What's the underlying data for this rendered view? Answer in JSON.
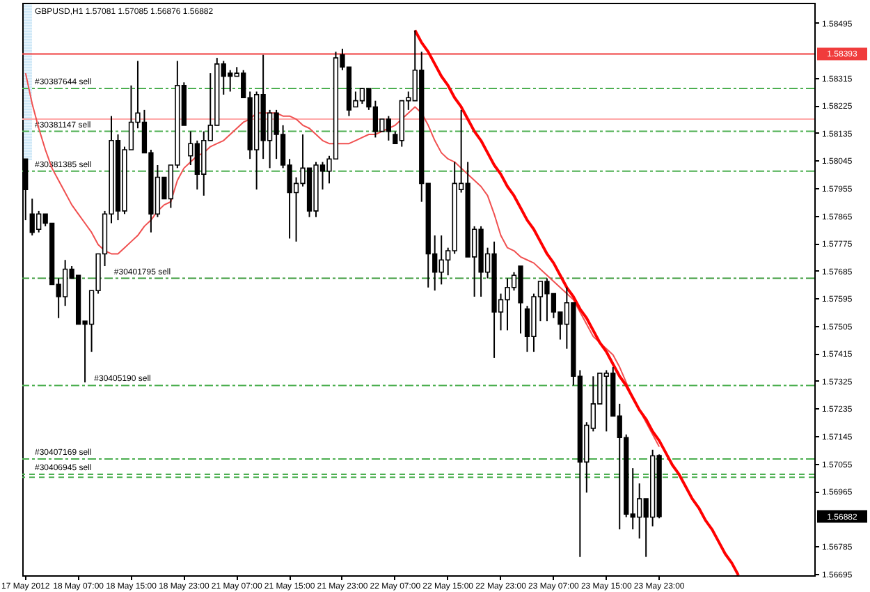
{
  "chart_data": {
    "type": "candlestick",
    "title": "GBPUSD,H1 1.57081 1.57085 1.56876 1.56882",
    "categories": [
      "17 May 2012",
      null,
      null,
      null,
      null,
      null,
      null,
      null,
      "18 May 07:00",
      null,
      null,
      null,
      null,
      null,
      null,
      null,
      "18 May 15:00",
      null,
      null,
      null,
      null,
      null,
      null,
      null,
      "18 May 23:00",
      null,
      null,
      null,
      null,
      null,
      null,
      null,
      "21 May 07:00",
      null,
      null,
      null,
      null,
      null,
      null,
      null,
      "21 May 15:00",
      null,
      null,
      null,
      null,
      null,
      null,
      null,
      "21 May 23:00",
      null,
      null,
      null,
      null,
      null,
      null,
      null,
      "22 May 07:00",
      null,
      null,
      null,
      null,
      null,
      null,
      null,
      "22 May 15:00",
      null,
      null,
      null,
      null,
      null,
      null,
      null,
      "22 May 23:00",
      null,
      null,
      null,
      null,
      null,
      null,
      null,
      "23 May 07:00",
      null,
      null,
      null,
      null,
      null,
      null,
      null,
      "23 May 15:00",
      null,
      null,
      null,
      null,
      null,
      null,
      null,
      "23 May 23:00",
      null,
      null,
      null,
      null,
      null,
      null,
      null,
      null,
      null,
      null,
      null,
      null,
      null,
      null,
      null,
      null,
      null,
      null,
      null,
      null,
      null,
      null,
      null
    ],
    "ohlc": [
      [
        1.5805,
        1.5805,
        1.5785,
        1.5795
      ],
      [
        1.5787,
        1.5792,
        1.578,
        1.5781
      ],
      [
        1.5782,
        1.5788,
        1.5781,
        1.5787
      ],
      [
        1.5787,
        1.5787,
        1.5783,
        1.5784
      ],
      [
        1.5784,
        1.5784,
        1.5764,
        1.5764
      ],
      [
        1.5764,
        1.5766,
        1.5753,
        1.576
      ],
      [
        1.576,
        1.5772,
        1.5757,
        1.5769
      ],
      [
        1.5769,
        1.577,
        1.5766,
        1.5766
      ],
      [
        1.5767,
        1.5767,
        1.5751,
        1.5751
      ],
      [
        1.5752,
        1.5752,
        1.5732,
        1.5751
      ],
      [
        1.5751,
        1.5762,
        1.5742,
        1.5762
      ],
      [
        1.5762,
        1.5774,
        1.5761,
        1.5774
      ],
      [
        1.5774,
        1.5788,
        1.577,
        1.5787
      ],
      [
        1.5787,
        1.5819,
        1.5784,
        1.5811
      ],
      [
        1.5811,
        1.5813,
        1.5785,
        1.5788
      ],
      [
        1.5788,
        1.5809,
        1.5787,
        1.5808
      ],
      [
        1.5808,
        1.5829,
        1.5808,
        1.5817
      ],
      [
        1.5817,
        1.5837,
        1.5815,
        1.582
      ],
      [
        1.5817,
        1.5821,
        1.5807,
        1.5807
      ],
      [
        1.5807,
        1.5808,
        1.5781,
        1.5787
      ],
      [
        1.5787,
        1.5803,
        1.5786,
        1.5799
      ],
      [
        1.5799,
        1.5799,
        1.5792,
        1.5792
      ],
      [
        1.5792,
        1.5803,
        1.5789,
        1.5803
      ],
      [
        1.5803,
        1.5837,
        1.5802,
        1.5829
      ],
      [
        1.5829,
        1.583,
        1.5816,
        1.5816
      ],
      [
        1.5806,
        1.5814,
        1.5803,
        1.581
      ],
      [
        1.581,
        1.5811,
        1.5795,
        1.58
      ],
      [
        1.58,
        1.5814,
        1.5793,
        1.5811
      ],
      [
        1.5811,
        1.5833,
        1.5811,
        1.5816
      ],
      [
        1.5816,
        1.5838,
        1.5816,
        1.5836
      ],
      [
        1.5836,
        1.5837,
        1.5826,
        1.5832
      ],
      [
        1.5833,
        1.5834,
        1.5827,
        1.5832
      ],
      [
        1.5832,
        1.5835,
        1.5832,
        1.5833
      ],
      [
        1.5833,
        1.5834,
        1.5825,
        1.5825
      ],
      [
        1.5825,
        1.5827,
        1.5805,
        1.5808
      ],
      [
        1.5808,
        1.5827,
        1.5795,
        1.5826
      ],
      [
        1.5826,
        1.5839,
        1.5805,
        1.5811
      ],
      [
        1.5811,
        1.5821,
        1.5802,
        1.582
      ],
      [
        1.582,
        1.5821,
        1.5805,
        1.5813
      ],
      [
        1.5813,
        1.5816,
        1.5802,
        1.5803
      ],
      [
        1.5803,
        1.5805,
        1.5779,
        1.5794
      ],
      [
        1.5794,
        1.5799,
        1.5778,
        1.5797
      ],
      [
        1.5797,
        1.5813,
        1.5796,
        1.5802
      ],
      [
        1.5802,
        1.5802,
        1.5786,
        1.5788
      ],
      [
        1.5788,
        1.5804,
        1.5786,
        1.5803
      ],
      [
        1.5803,
        1.5804,
        1.5795,
        1.5801
      ],
      [
        1.5801,
        1.5806,
        1.5797,
        1.5805
      ],
      [
        1.5805,
        1.584,
        1.5805,
        1.5838
      ],
      [
        1.5839,
        1.5841,
        1.5834,
        1.5835
      ],
      [
        1.5835,
        1.5835,
        1.5819,
        1.5821
      ],
      [
        1.5822,
        1.5827,
        1.5822,
        1.5824
      ],
      [
        1.5824,
        1.5828,
        1.5823,
        1.5828
      ],
      [
        1.5828,
        1.5828,
        1.5821,
        1.5822
      ],
      [
        1.5822,
        1.5824,
        1.5812,
        1.5814
      ],
      [
        1.5814,
        1.5818,
        1.5814,
        1.5818
      ],
      [
        1.5818,
        1.5819,
        1.5811,
        1.5814
      ],
      [
        1.5813,
        1.5814,
        1.581,
        1.581
      ],
      [
        1.5811,
        1.5824,
        1.5809,
        1.5824
      ],
      [
        1.5824,
        1.5827,
        1.5821,
        1.5825
      ],
      [
        1.5824,
        1.5847,
        1.5824,
        1.5834
      ],
      [
        1.5834,
        1.584,
        1.5791,
        1.5797
      ],
      [
        1.5797,
        1.5797,
        1.5763,
        1.5774
      ],
      [
        1.5774,
        1.578,
        1.5762,
        1.5768
      ],
      [
        1.5768,
        1.578,
        1.5764,
        1.5772
      ],
      [
        1.5772,
        1.5776,
        1.5767,
        1.5775
      ],
      [
        1.5775,
        1.5804,
        1.5774,
        1.5797
      ],
      [
        1.5795,
        1.5821,
        1.5794,
        1.5797
      ],
      [
        1.5797,
        1.5804,
        1.5773,
        1.5773
      ],
      [
        1.5773,
        1.5783,
        1.576,
        1.5782
      ],
      [
        1.5782,
        1.5783,
        1.576,
        1.5768
      ],
      [
        1.5768,
        1.5776,
        1.5766,
        1.5774
      ],
      [
        1.5774,
        1.5778,
        1.574,
        1.5755
      ],
      [
        1.5755,
        1.5761,
        1.5749,
        1.5759
      ],
      [
        1.5759,
        1.5766,
        1.5749,
        1.5763
      ],
      [
        1.5763,
        1.5768,
        1.5762,
        1.5767
      ],
      [
        1.577,
        1.577,
        1.5748,
        1.5758
      ],
      [
        1.5756,
        1.5757,
        1.5742,
        1.5747
      ],
      [
        1.5747,
        1.5761,
        1.5742,
        1.576
      ],
      [
        1.576,
        1.5765,
        1.5752,
        1.5765
      ],
      [
        1.5765,
        1.5766,
        1.5752,
        1.5761
      ],
      [
        1.5761,
        1.5761,
        1.5753,
        1.5755
      ],
      [
        1.5755,
        1.5755,
        1.5746,
        1.5751
      ],
      [
        1.5751,
        1.5763,
        1.5743,
        1.5758
      ],
      [
        1.5758,
        1.5758,
        1.5731,
        1.5734
      ],
      [
        1.5734,
        1.5736,
        1.5675,
        1.5706
      ],
      [
        1.5706,
        1.5719,
        1.5696,
        1.5718
      ],
      [
        1.5717,
        1.5734,
        1.5716,
        1.5725
      ],
      [
        1.5725,
        1.5735,
        1.5725,
        1.5735
      ],
      [
        1.5734,
        1.5736,
        1.5716,
        1.5735
      ],
      [
        1.5735,
        1.5737,
        1.5721,
        1.5721
      ],
      [
        1.5721,
        1.5725,
        1.5684,
        1.5714
      ],
      [
        1.5714,
        1.5715,
        1.5688,
        1.5689
      ],
      [
        1.5689,
        1.5704,
        1.5684,
        1.5688
      ],
      [
        1.5688,
        1.5699,
        1.5681,
        1.5694
      ],
      [
        1.5694,
        1.5694,
        1.5675,
        1.5688
      ],
      [
        1.5688,
        1.571,
        1.5685,
        1.5708
      ],
      [
        1.57081,
        1.57085,
        1.56876,
        1.56882
      ],
      null,
      null,
      null,
      null,
      null,
      null,
      null,
      null,
      null,
      null,
      null,
      null,
      null,
      null,
      null,
      null,
      null,
      null,
      null,
      null,
      null,
      null,
      null
    ],
    "series": [
      {
        "type": "line",
        "color": "#f05050",
        "values": [
          1.5833,
          1.5823,
          1.5815,
          1.5808,
          1.5802,
          1.5798,
          1.5794,
          1.579,
          1.5787,
          1.5784,
          1.5781,
          1.5777,
          1.5775,
          1.5774,
          1.5774,
          1.5776,
          1.5778,
          1.578,
          1.5783,
          1.5785,
          1.5788,
          1.579,
          1.5791,
          1.5798,
          1.5802,
          1.5804,
          1.5806,
          1.5807,
          1.5809,
          1.581,
          1.5811,
          1.5813,
          1.5815,
          1.5817,
          1.5818,
          1.582,
          1.582,
          1.582,
          1.582,
          1.5819,
          1.5819,
          1.5818,
          1.5816,
          1.5815,
          1.5813,
          1.5811,
          1.581,
          1.581,
          1.581,
          1.581,
          1.5811,
          1.5812,
          1.5813,
          1.5813,
          1.5814,
          1.5815,
          1.5816,
          1.5818,
          1.582,
          1.5822,
          1.582,
          1.5816,
          1.5811,
          1.5807,
          1.5805,
          1.5804,
          1.5802,
          1.58,
          1.5798,
          1.5796,
          1.5793,
          1.5787,
          1.578,
          1.5776,
          1.5775,
          1.5773,
          1.5772,
          1.5771,
          1.5769,
          1.5767,
          1.5765,
          1.5763,
          1.5761,
          1.5759,
          1.5755,
          1.5751,
          1.5747,
          1.5745,
          1.5743,
          1.5741,
          1.5737,
          1.5732,
          1.5727,
          1.5723,
          1.5719,
          1.5715,
          1.5711,
          null,
          null,
          null,
          null,
          null,
          null,
          null,
          null,
          null,
          null,
          null,
          null,
          null,
          null,
          null,
          null,
          null,
          null,
          null,
          null,
          null,
          null,
          null
        ]
      },
      {
        "type": "line",
        "color": "#ff0000",
        "values": [
          null,
          null,
          null,
          null,
          null,
          null,
          null,
          null,
          null,
          null,
          null,
          null,
          null,
          null,
          null,
          null,
          null,
          null,
          null,
          null,
          null,
          null,
          null,
          null,
          null,
          null,
          null,
          null,
          null,
          null,
          null,
          null,
          null,
          null,
          null,
          null,
          null,
          null,
          null,
          null,
          null,
          null,
          null,
          null,
          null,
          null,
          null,
          null,
          null,
          null,
          null,
          null,
          null,
          null,
          null,
          null,
          null,
          null,
          null,
          1.5847,
          1.5843,
          1.584,
          1.5836,
          1.5832,
          1.5829,
          1.5825,
          1.5822,
          1.5818,
          1.5814,
          1.5811,
          1.5807,
          1.5803,
          1.58,
          1.5796,
          1.5793,
          1.5789,
          1.5785,
          1.5782,
          1.5778,
          1.5774,
          1.5771,
          1.5767,
          1.5763,
          1.576,
          1.5756,
          1.5753,
          1.5749,
          1.5745,
          1.5742,
          1.5738,
          1.5734,
          1.5731,
          1.5727,
          1.5723,
          1.572,
          1.5716,
          1.5713,
          1.5709,
          1.5705,
          1.5702,
          1.5698,
          1.5694,
          1.5691,
          1.5687,
          1.5684,
          1.568,
          1.5676,
          1.5673,
          1.5669,
          null,
          null,
          null,
          null,
          null,
          null,
          null,
          null,
          null,
          null,
          null
        ]
      }
    ],
    "ylim": [
      1.5669,
      1.5856
    ],
    "yticks": [
      1.56695,
      1.56785,
      1.56965,
      1.57055,
      1.57145,
      1.57235,
      1.57325,
      1.57415,
      1.57505,
      1.57595,
      1.57685,
      1.57775,
      1.57865,
      1.57955,
      1.58045,
      1.58135,
      1.58225,
      1.58315,
      1.58495
    ],
    "ref_lines": [
      {
        "axis": "y",
        "value": 1.58393,
        "color": "#f03c3c",
        "line_style": "solid"
      },
      {
        "axis": "y",
        "value": 1.5828,
        "label": "#30387644 sell",
        "color": "#4caf50",
        "line_style": "dashdot"
      },
      {
        "axis": "y",
        "value": 1.5818,
        "color": "#ffa8a8",
        "line_style": "solid"
      },
      {
        "axis": "y",
        "value": 1.5814,
        "label": "#30381147 sell",
        "color": "#4caf50",
        "line_style": "dashdot"
      },
      {
        "axis": "y",
        "value": 1.5801,
        "label": "#30381385 sell",
        "color": "#4caf50",
        "line_style": "dashdot"
      },
      {
        "axis": "y",
        "value": 1.5766,
        "label": "#30401795 sell",
        "color": "#3a9a3a",
        "line_style": "dashdot"
      },
      {
        "axis": "y",
        "value": 1.5731,
        "label": "#30405190 sell",
        "color": "#4caf50",
        "line_style": "dashdot"
      },
      {
        "axis": "y",
        "value": 1.5707,
        "label": "#30407169 sell",
        "color": "#4caf50",
        "line_style": "dashdot"
      },
      {
        "axis": "y",
        "value": 1.5702,
        "label": "#30406945 sell",
        "color": "#4caf50",
        "line_style": "dashed"
      },
      {
        "axis": "y",
        "value": 1.5701,
        "color": "#4caf50",
        "line_style": "dashed"
      }
    ],
    "annotations": [
      "1.58393",
      "1.56882"
    ]
  }
}
